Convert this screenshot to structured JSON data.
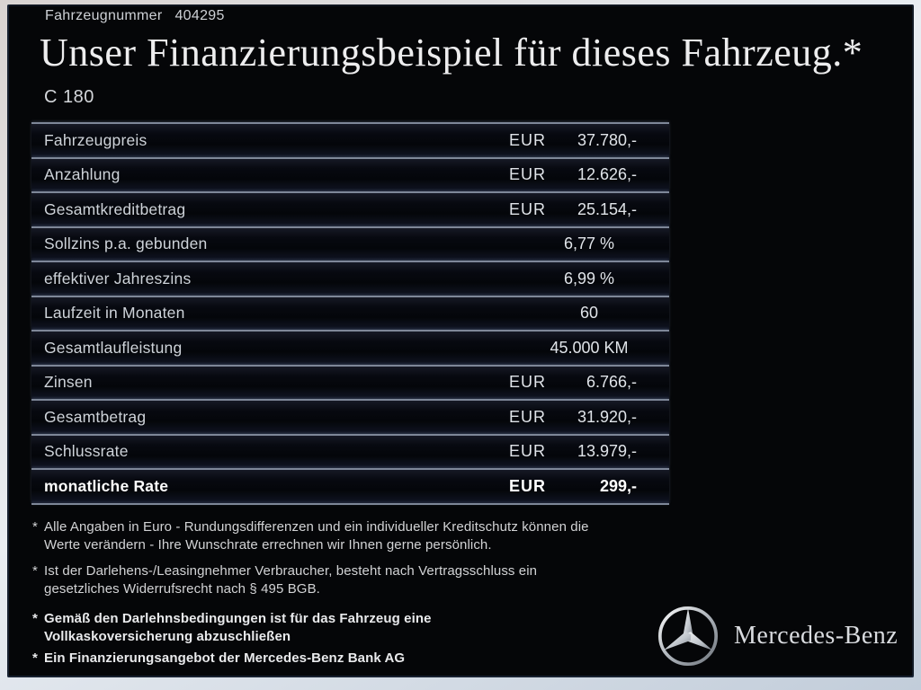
{
  "header": {
    "vehicle_number_label": "Fahrzeugnummer",
    "vehicle_number": "404295",
    "title": "Unser Finanzierungsbeispiel für dieses Fahrzeug.*",
    "model": "C 180"
  },
  "table": {
    "rows": [
      {
        "label": "Fahrzeugpreis",
        "currency": "EUR",
        "value": "37.780,-",
        "align": "eur",
        "bold": false
      },
      {
        "label": "Anzahlung",
        "currency": "EUR",
        "value": "12.626,-",
        "align": "eur",
        "bold": false
      },
      {
        "label": "Gesamtkreditbetrag",
        "currency": "EUR",
        "value": "25.154,-",
        "align": "eur",
        "bold": false
      },
      {
        "label": "Sollzins p.a. gebunden",
        "currency": "",
        "value": "6,77 %",
        "align": "center",
        "bold": false
      },
      {
        "label": "effektiver Jahreszins",
        "currency": "",
        "value": "6,99 %",
        "align": "center",
        "bold": false
      },
      {
        "label": "Laufzeit in Monaten",
        "currency": "",
        "value": "60",
        "align": "center",
        "bold": false
      },
      {
        "label": "Gesamtlaufleistung",
        "currency": "",
        "value": "45.000 KM",
        "align": "center",
        "bold": false
      },
      {
        "label": "Zinsen",
        "currency": "EUR",
        "value": "6.766,-",
        "align": "eur",
        "bold": false
      },
      {
        "label": "Gesamtbetrag",
        "currency": "EUR",
        "value": "31.920,-",
        "align": "eur",
        "bold": false
      },
      {
        "label": "Schlussrate",
        "currency": "EUR",
        "value": "13.979,-",
        "align": "eur",
        "bold": false
      },
      {
        "label": "monatliche Rate",
        "currency": "EUR",
        "value": "299,-",
        "align": "eur",
        "bold": true
      }
    ]
  },
  "footnotes": [
    {
      "marker": "*",
      "bold": false,
      "lines": [
        "Alle Angaben in Euro - Rundungsdifferenzen und ein individueller Kreditschutz können die",
        "Werte verändern - Ihre Wunschrate errechnen wir Ihnen gerne persönlich."
      ]
    },
    {
      "marker": "*",
      "bold": false,
      "lines": [
        "Ist der Darlehens-/Leasingnehmer Verbraucher, besteht nach Vertragsschluss ein",
        "gesetzliches Widerrufsrecht nach § 495 BGB."
      ]
    },
    {
      "marker": "*",
      "bold": true,
      "lines": [
        "Gemäß den Darlehnsbedingungen ist für das Fahrzeug eine",
        "Vollkaskoversicherung abzuschließen"
      ]
    },
    {
      "marker": "*",
      "bold": true,
      "lines": [
        "Ein Finanzierungsangebot der Mercedes-Benz Bank AG"
      ]
    }
  ],
  "brand": {
    "logo": "mercedes-star",
    "name": "Mercedes-Benz"
  },
  "colors": {
    "panel_background": "#050608",
    "separator_line": "#7e8798",
    "text_primary": "#ededee",
    "frame_light": "#e9edf2"
  }
}
